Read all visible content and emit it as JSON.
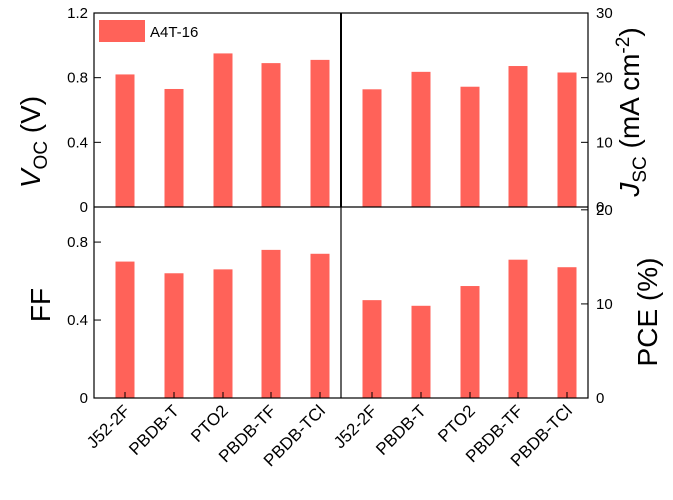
{
  "chart_data": [
    {
      "type": "bar",
      "panel": "top-left",
      "categories": [
        "J52-2F",
        "PBDB-T",
        "PTO2",
        "PBDB-TF",
        "PBDB-TCl"
      ],
      "series": [
        {
          "name": "A4T-16",
          "values": [
            0.82,
            0.73,
            0.95,
            0.89,
            0.91
          ]
        }
      ],
      "ylabel": "V",
      "ylabel_sub": "OC",
      "ylabel_unit": " (V)",
      "ylim": [
        0,
        1.2
      ],
      "yticks": [
        "0",
        "0.4",
        "0.8",
        "1.2"
      ],
      "ytick_values": [
        0,
        0.4,
        0.8,
        1.2
      ],
      "y_axis_side": "left"
    },
    {
      "type": "bar",
      "panel": "top-right",
      "categories": [
        "J52-2F",
        "PBDB-T",
        "PTO2",
        "PBDB-TF",
        "PBDB-TCl"
      ],
      "series": [
        {
          "name": "A4T-16",
          "values": [
            18.2,
            20.9,
            18.6,
            21.8,
            20.8
          ]
        }
      ],
      "ylabel": "J",
      "ylabel_sub": "SC",
      "ylabel_unit": " (mA cm",
      "ylabel_sup": "-2",
      "ylabel_close": ")",
      "ylim": [
        0,
        30
      ],
      "yticks": [
        "0",
        "10",
        "20",
        "30"
      ],
      "ytick_values": [
        0,
        10,
        20,
        30
      ],
      "y_axis_side": "right"
    },
    {
      "type": "bar",
      "panel": "bottom-left",
      "categories": [
        "J52-2F",
        "PBDB-T",
        "PTO2",
        "PBDB-TF",
        "PBDB-TCl"
      ],
      "series": [
        {
          "name": "A4T-16",
          "values": [
            0.7,
            0.64,
            0.66,
            0.76,
            0.74
          ]
        }
      ],
      "ylabel": "FF",
      "ylim": [
        0,
        0.98
      ],
      "yticks": [
        "0",
        "0.4",
        "0.8"
      ],
      "ytick_values": [
        0,
        0.4,
        0.8
      ],
      "y_axis_side": "left"
    },
    {
      "type": "bar",
      "panel": "bottom-right",
      "categories": [
        "J52-2F",
        "PBDB-T",
        "PTO2",
        "PBDB-TF",
        "PBDB-TCl"
      ],
      "series": [
        {
          "name": "A4T-16",
          "values": [
            10.4,
            9.8,
            11.9,
            14.7,
            13.9
          ]
        }
      ],
      "ylabel": "PCE (%)",
      "ylim": [
        0,
        20.3
      ],
      "yticks": [
        "0",
        "10",
        "20"
      ],
      "ytick_values": [
        0,
        10,
        20
      ],
      "y_axis_side": "right"
    }
  ],
  "legend": {
    "label": "A4T-16",
    "position": "top-left"
  },
  "colors": {
    "bar": "#ff6259",
    "axis": "#000000"
  }
}
